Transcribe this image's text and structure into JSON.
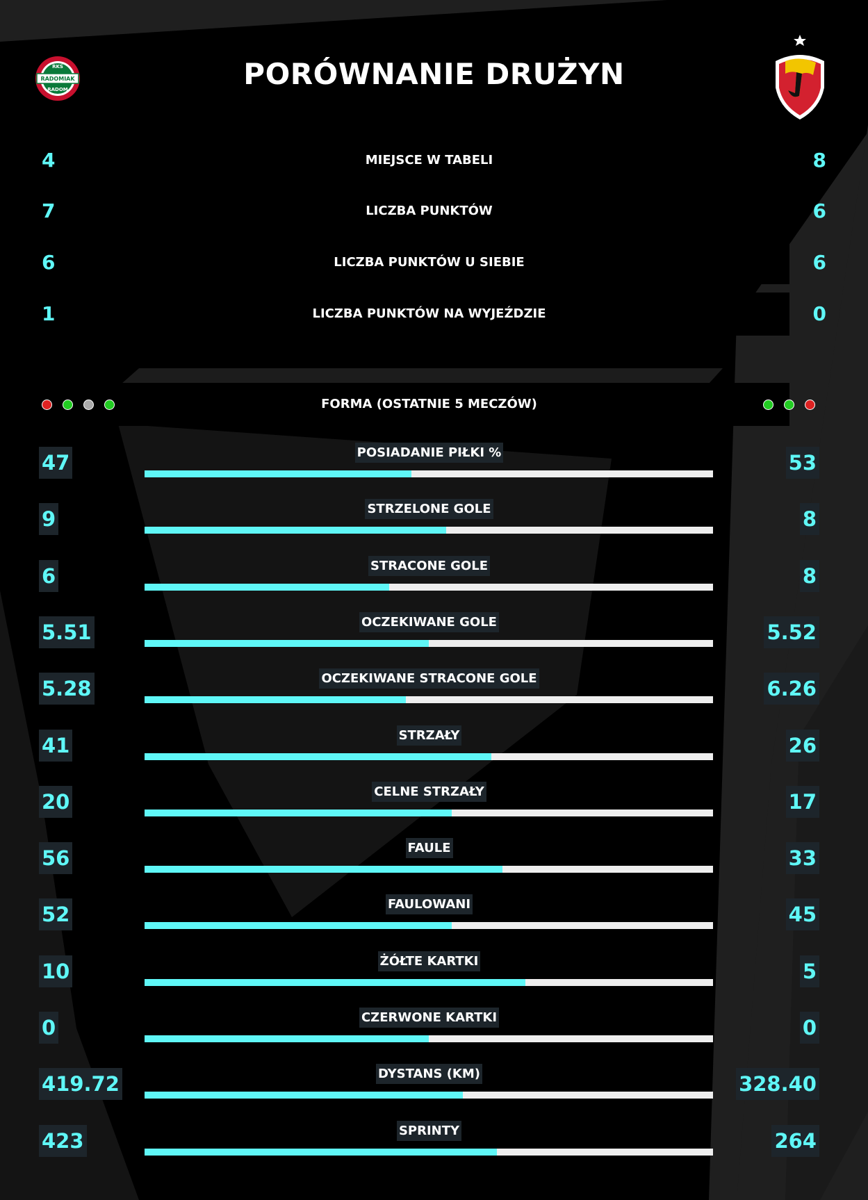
{
  "page": {
    "title": "PORÓWNANIE DRUŻYN"
  },
  "home_team": {
    "logo": "radomiak-crest-icon",
    "logo_text": [
      "RKS",
      "RADOMIAK",
      "RADOM"
    ]
  },
  "away_team": {
    "logo": "jagiellonia-crest-icon"
  },
  "colors": {
    "accent": "#5ff7f7",
    "bar_track": "#eeeeee",
    "win": "#22cc22",
    "loss": "#dd2222",
    "draw": "#aaaaaa"
  },
  "summary": [
    {
      "label": "MIEJSCE W TABELI",
      "home": "4",
      "away": "8"
    },
    {
      "label": "LICZBA PUNKTÓW",
      "home": "7",
      "away": "6"
    },
    {
      "label": "LICZBA PUNKTÓW U SIEBIE",
      "home": "6",
      "away": "6"
    },
    {
      "label": "LICZBA PUNKTÓW NA WYJEŹDZIE",
      "home": "1",
      "away": "0"
    }
  ],
  "form": {
    "label": "FORMA (OSTATNIE 5 MECZÓW)",
    "home": [
      "loss",
      "win",
      "draw",
      "win"
    ],
    "away": [
      "win",
      "win",
      "loss"
    ]
  },
  "stats": [
    {
      "label": "POSIADANIE PIŁKI %",
      "home": "47",
      "away": "53",
      "home_share": 0.47
    },
    {
      "label": "STRZELONE GOLE",
      "home": "9",
      "away": "8",
      "home_share": 0.53
    },
    {
      "label": "STRACONE GOLE",
      "home": "6",
      "away": "8",
      "home_share": 0.43
    },
    {
      "label": "OCZEKIWANE GOLE",
      "home": "5.51",
      "away": "5.52",
      "home_share": 0.5
    },
    {
      "label": "OCZEKIWANE STRACONE GOLE",
      "home": "5.28",
      "away": "6.26",
      "home_share": 0.46
    },
    {
      "label": "STRZAŁY",
      "home": "41",
      "away": "26",
      "home_share": 0.61
    },
    {
      "label": "CELNE STRZAŁY",
      "home": "20",
      "away": "17",
      "home_share": 0.54
    },
    {
      "label": "FAULE",
      "home": "56",
      "away": "33",
      "home_share": 0.63
    },
    {
      "label": "FAULOWANI",
      "home": "52",
      "away": "45",
      "home_share": 0.54
    },
    {
      "label": "ŻÓŁTE KARTKI",
      "home": "10",
      "away": "5",
      "home_share": 0.67
    },
    {
      "label": "CZERWONE KARTKI",
      "home": "0",
      "away": "0",
      "home_share": 0.5
    },
    {
      "label": "DYSTANS (KM)",
      "home": "419.72",
      "away": "328.40",
      "home_share": 0.56
    },
    {
      "label": "SPRINTY",
      "home": "423",
      "away": "264",
      "home_share": 0.62
    }
  ]
}
